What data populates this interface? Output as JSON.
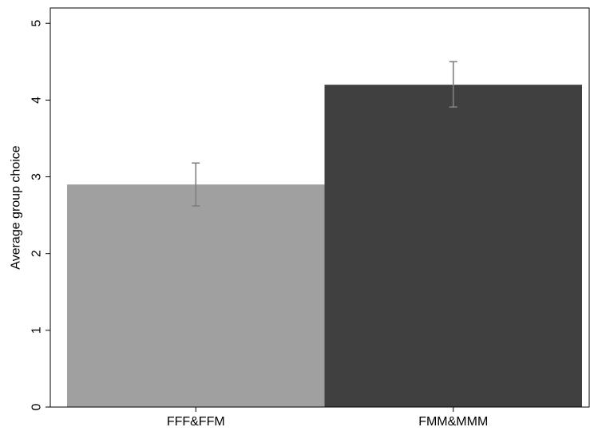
{
  "chart_data": {
    "type": "bar",
    "categories": [
      "FFF&FFM",
      "FMM&MMM"
    ],
    "values": [
      2.9,
      4.2
    ],
    "error_bars": [
      {
        "low": 2.62,
        "high": 3.18
      },
      {
        "low": 3.91,
        "high": 4.5
      }
    ],
    "bar_colors": [
      "#a0a0a0",
      "#404040"
    ],
    "error_bar_color": "#808080",
    "title": "",
    "xlabel": "",
    "ylabel": "Average group choice",
    "yticks": [
      0,
      1,
      2,
      3,
      4,
      5
    ],
    "ylim": [
      0,
      5.2
    ],
    "grid": false,
    "legend": false
  }
}
